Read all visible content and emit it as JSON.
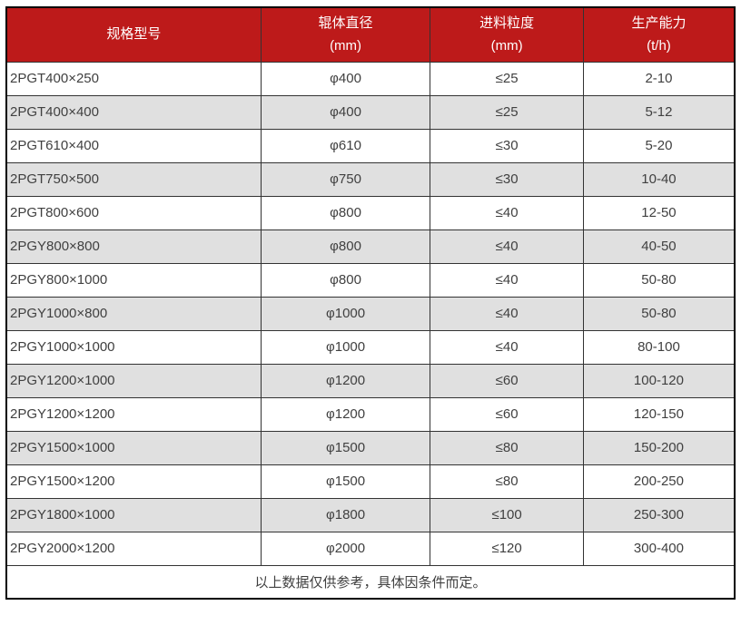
{
  "table": {
    "columns": [
      {
        "label": "规格型号",
        "unit": ""
      },
      {
        "label": "辊体直径",
        "unit": "(mm)"
      },
      {
        "label": "进料粒度",
        "unit": "(mm)"
      },
      {
        "label": "生产能力",
        "unit": "(t/h)"
      }
    ],
    "rows": [
      [
        "2PGT400×250",
        "φ400",
        "≤25",
        "2-10"
      ],
      [
        "2PGT400×400",
        "φ400",
        "≤25",
        "5-12"
      ],
      [
        "2PGT610×400",
        "φ610",
        "≤30",
        "5-20"
      ],
      [
        "2PGT750×500",
        "φ750",
        "≤30",
        "10-40"
      ],
      [
        "2PGT800×600",
        "φ800",
        "≤40",
        "12-50"
      ],
      [
        "2PGY800×800",
        "φ800",
        "≤40",
        "40-50"
      ],
      [
        "2PGY800×1000",
        "φ800",
        "≤40",
        "50-80"
      ],
      [
        "2PGY1000×800",
        "φ1000",
        "≤40",
        "50-80"
      ],
      [
        "2PGY1000×1000",
        "φ1000",
        "≤40",
        "80-100"
      ],
      [
        "2PGY1200×1000",
        "φ1200",
        "≤60",
        "100-120"
      ],
      [
        "2PGY1200×1200",
        "φ1200",
        "≤60",
        "120-150"
      ],
      [
        "2PGY1500×1000",
        "φ1500",
        "≤80",
        "150-200"
      ],
      [
        "2PGY1500×1200",
        "φ1500",
        "≤80",
        "200-250"
      ],
      [
        "2PGY1800×1000",
        "φ1800",
        "≤100",
        "250-300"
      ],
      [
        "2PGY2000×1200",
        "φ2000",
        "≤120",
        "300-400"
      ]
    ],
    "footer_note": "以上数据仅供参考，具体因条件而定。"
  },
  "colors": {
    "header_bg": "#bd1a1a",
    "header_text": "#ffffff",
    "row_bg": "#ffffff",
    "row_alt_bg": "#e0e0e0",
    "body_text": "#404040",
    "outer_border": "#000000",
    "inner_border": "#333333"
  }
}
